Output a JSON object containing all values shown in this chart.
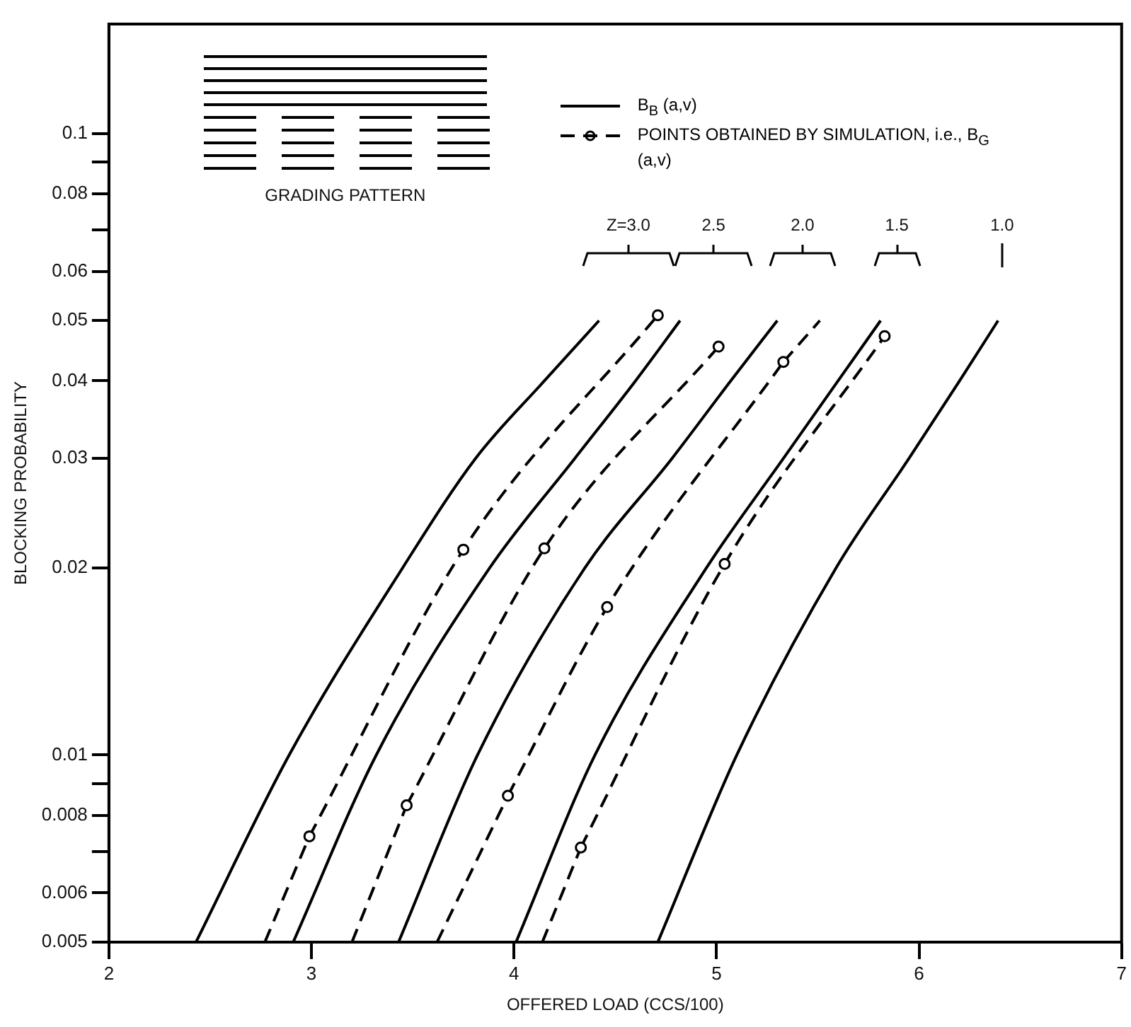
{
  "chart_data": {
    "type": "line",
    "xlabel": "OFFERED LOAD (CCS/100)",
    "ylabel": "BLOCKING PROBABILITY",
    "log": "y",
    "grid": false,
    "legend": "top right",
    "xlim": [
      2,
      7
    ],
    "xticks": [
      2,
      3,
      4,
      5,
      6,
      7
    ],
    "ylim": [
      0.005,
      0.15
    ],
    "yticks": [
      0.005,
      0.006,
      {
        "value": 0.007,
        "label": null
      },
      0.008,
      {
        "value": 0.009,
        "label": null
      },
      0.01,
      0.02,
      0.03,
      0.04,
      0.05,
      0.06,
      {
        "value": 0.07,
        "label": null
      },
      0.08,
      {
        "value": 0.09,
        "label": null
      },
      0.1
    ],
    "annotations": [
      "GRADING PATTERN",
      "Z=3.0",
      "2.5",
      "2.0",
      "1.5",
      "1.0"
    ],
    "series": [
      {
        "name": "B$_{B}$ (a,v)",
        "line_style": "solid",
        "marker": "none",
        "color": "#000000",
        "x": [
          2.43,
          2.89,
          3.45,
          3.81,
          4.15,
          4.42
        ],
        "values": [
          0.005,
          0.01,
          0.02,
          0.03,
          0.04,
          0.05
        ]
      },
      {
        "type": "line",
        "line_style": "solid",
        "marker": "none",
        "color": "#000000",
        "x": [
          2.91,
          3.32,
          3.88,
          4.3,
          4.6,
          4.82
        ],
        "values": [
          0.005,
          0.01,
          0.02,
          0.03,
          0.04,
          0.05
        ]
      },
      {
        "type": "line",
        "line_style": "solid",
        "marker": "none",
        "color": "#000000",
        "x": [
          3.43,
          3.82,
          4.35,
          4.78,
          5.07,
          5.3
        ],
        "values": [
          0.005,
          0.01,
          0.02,
          0.03,
          0.04,
          0.05
        ]
      },
      {
        "type": "line",
        "line_style": "solid",
        "marker": "none",
        "color": "#000000",
        "x": [
          4.01,
          4.4,
          4.95,
          5.33,
          5.6,
          5.81
        ],
        "values": [
          0.005,
          0.01,
          0.02,
          0.03,
          0.04,
          0.05
        ]
      },
      {
        "type": "line",
        "line_style": "solid",
        "marker": "none",
        "color": "#000000",
        "x": [
          4.71,
          5.1,
          5.59,
          5.95,
          6.2,
          6.39
        ],
        "values": [
          0.005,
          0.01,
          0.02,
          0.03,
          0.04,
          0.05
        ]
      },
      {
        "name": "POINTS OBTAINED BY SIMULATION, i.e., B$_{G}$ (a,v)",
        "type": "line",
        "line_style": "dashed",
        "marker": "circle",
        "color": "#000000",
        "x": [
          2.99,
          3.75,
          4.71
        ],
        "values": [
          0.0074,
          0.0214,
          0.051
        ]
      },
      {
        "type": "line",
        "line_style": "dashed",
        "marker": "none",
        "color": "#000000",
        "x": [
          2.77,
          2.99
        ],
        "values": [
          0.005,
          0.0074
        ]
      },
      {
        "type": "line",
        "line_style": "dashed",
        "marker": "circle",
        "color": "#000000",
        "x": [
          3.47,
          4.15,
          5.01
        ],
        "values": [
          0.0083,
          0.0215,
          0.0454
        ]
      },
      {
        "type": "line",
        "line_style": "dashed",
        "marker": "none",
        "color": "#000000",
        "x": [
          3.2,
          3.47
        ],
        "values": [
          0.005,
          0.0083
        ]
      },
      {
        "type": "line",
        "line_style": "dashed",
        "marker": "circle",
        "color": "#000000",
        "x": [
          3.97,
          4.46,
          5.33
        ],
        "values": [
          0.0086,
          0.0173,
          0.0429
        ]
      },
      {
        "type": "line",
        "line_style": "dashed",
        "marker": "none",
        "color": "#000000",
        "x": [
          3.62,
          3.97
        ],
        "values": [
          0.005,
          0.0086
        ]
      },
      {
        "type": "line",
        "line_style": "dashed",
        "marker": "none",
        "color": "#000000",
        "x": [
          5.33,
          5.51
        ],
        "values": [
          0.0429,
          0.05
        ]
      },
      {
        "type": "line",
        "line_style": "dashed",
        "marker": "circle",
        "color": "#000000",
        "x": [
          4.33,
          5.04,
          5.83
        ],
        "values": [
          0.0071,
          0.0203,
          0.0472
        ]
      },
      {
        "type": "line",
        "line_style": "dashed",
        "marker": "none",
        "color": "#000000",
        "x": [
          4.14,
          4.33
        ],
        "values": [
          0.005,
          0.0071
        ]
      }
    ]
  }
}
